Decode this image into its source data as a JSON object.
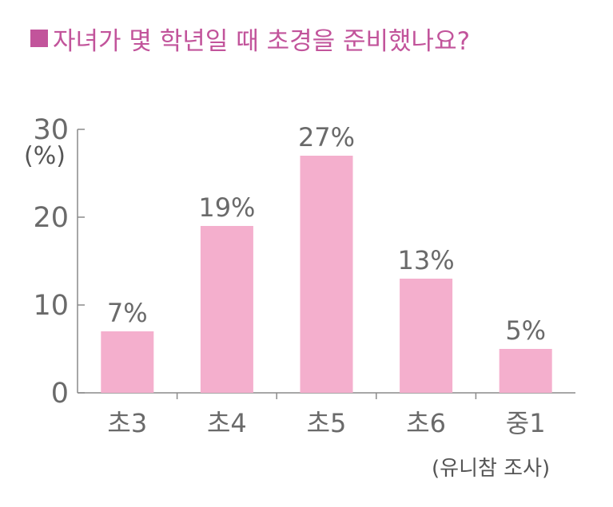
{
  "title": "자녀가 몇 학년일 때 초경을 준비했나요?",
  "chart_data": {
    "type": "bar",
    "title": "자녀가 몇 학년일 때 초경을 준비했나요?",
    "ylabel": "(%)",
    "source": "(유니참 조사)",
    "categories": [
      "초3",
      "초4",
      "초5",
      "초6",
      "중1"
    ],
    "values": [
      7,
      19,
      27,
      13,
      5
    ],
    "value_labels": [
      "7%",
      "19%",
      "27%",
      "13%",
      "5%"
    ],
    "ylim": [
      0,
      30
    ],
    "yticks": [
      0,
      10,
      20,
      30
    ],
    "ytick_labels": [
      "0",
      "10",
      "20",
      "30"
    ],
    "grid": false,
    "colors": {
      "bar": "#f4afcd",
      "title": "#c2549b",
      "axis": "#8a8a8a",
      "text": "#6a6a6a"
    }
  }
}
